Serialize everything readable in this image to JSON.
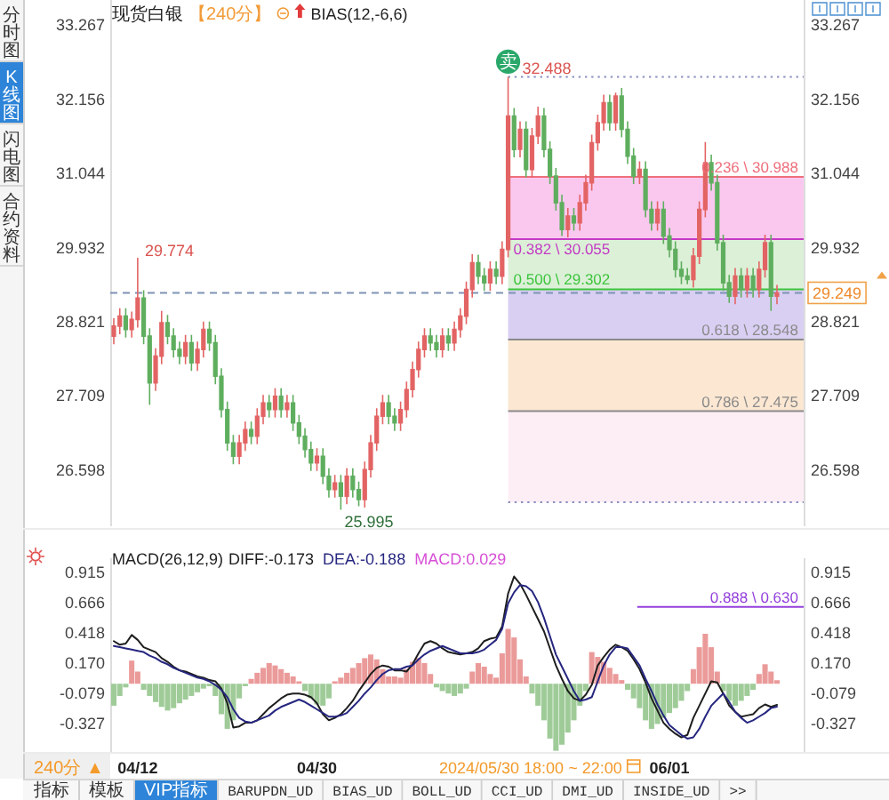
{
  "chart_data": [
    {
      "type": "candlestick",
      "title": "现货白银",
      "subtitle": "【240分】",
      "categories": [
        null,
        null,
        null,
        null,
        null,
        null,
        null,
        null,
        null,
        null,
        null,
        null,
        null,
        null,
        null,
        null,
        null,
        null,
        null,
        null,
        null,
        null,
        null,
        null,
        null,
        null,
        null,
        null,
        null,
        null,
        null,
        null,
        null,
        null,
        null,
        null,
        null,
        null,
        null,
        null,
        null,
        null,
        null,
        null,
        null,
        null,
        null,
        null,
        null,
        null,
        null,
        null,
        null,
        null,
        null,
        null,
        null,
        null,
        null,
        null,
        null,
        null,
        null,
        null,
        null,
        null,
        null,
        null,
        null,
        null,
        null,
        null,
        null,
        null,
        null,
        null,
        null,
        null,
        null,
        null,
        null,
        null,
        null,
        null,
        null,
        null,
        null,
        null,
        null,
        null,
        null,
        null,
        null,
        null,
        null,
        null,
        null,
        null,
        null,
        null,
        null,
        null,
        null,
        null,
        null,
        null,
        null,
        null,
        null,
        null,
        null,
        null
      ],
      "ohlc": [
        [
          28.6,
          28.87,
          28.48,
          28.75
        ],
        [
          28.75,
          29.02,
          28.63,
          28.9
        ],
        [
          28.9,
          29.02,
          28.58,
          28.7
        ],
        [
          28.7,
          28.97,
          28.58,
          28.85
        ],
        [
          28.85,
          29.774,
          28.73,
          29.17
        ],
        [
          29.17,
          29.29,
          28.48,
          28.6
        ],
        [
          28.6,
          28.72,
          27.57,
          27.9
        ],
        [
          27.9,
          28.42,
          27.78,
          28.3
        ],
        [
          28.3,
          28.98,
          28.18,
          28.8
        ],
        [
          28.8,
          28.92,
          28.48,
          28.6
        ],
        [
          28.6,
          28.72,
          28.28,
          28.4
        ],
        [
          28.4,
          28.52,
          28.18,
          28.3
        ],
        [
          28.3,
          28.62,
          28.18,
          28.5
        ],
        [
          28.5,
          28.62,
          28.08,
          28.2
        ],
        [
          28.2,
          28.52,
          28.08,
          28.4
        ],
        [
          28.4,
          28.82,
          28.28,
          28.7
        ],
        [
          28.7,
          28.82,
          28.38,
          28.5
        ],
        [
          28.5,
          28.62,
          27.88,
          28.0
        ],
        [
          28.0,
          28.12,
          27.38,
          27.5
        ],
        [
          27.5,
          27.62,
          26.88,
          27.0
        ],
        [
          27.0,
          27.12,
          26.68,
          26.8
        ],
        [
          26.8,
          27.12,
          26.68,
          27.0
        ],
        [
          27.0,
          27.32,
          26.88,
          27.2
        ],
        [
          27.2,
          27.32,
          26.98,
          27.1
        ],
        [
          27.1,
          27.52,
          26.98,
          27.4
        ],
        [
          27.4,
          27.72,
          27.28,
          27.6
        ],
        [
          27.6,
          27.72,
          27.38,
          27.5
        ],
        [
          27.5,
          27.82,
          27.38,
          27.7
        ],
        [
          27.7,
          27.82,
          27.38,
          27.5
        ],
        [
          27.5,
          27.72,
          27.38,
          27.6
        ],
        [
          27.6,
          27.72,
          27.18,
          27.3
        ],
        [
          27.3,
          27.42,
          26.98,
          27.1
        ],
        [
          27.1,
          27.22,
          26.78,
          26.9
        ],
        [
          26.9,
          27.02,
          26.58,
          26.7
        ],
        [
          26.7,
          26.92,
          26.58,
          26.8
        ],
        [
          26.8,
          26.92,
          26.38,
          26.5
        ],
        [
          26.5,
          26.62,
          26.18,
          26.3
        ],
        [
          26.3,
          26.52,
          26.18,
          26.4
        ],
        [
          26.4,
          26.52,
          25.995,
          26.2
        ],
        [
          26.2,
          26.62,
          26.08,
          26.5
        ],
        [
          26.5,
          26.62,
          26.18,
          26.3
        ],
        [
          26.3,
          26.42,
          26.05,
          26.15
        ],
        [
          26.15,
          26.72,
          26.03,
          26.6
        ],
        [
          26.6,
          27.12,
          26.48,
          27.0
        ],
        [
          27.0,
          27.52,
          26.88,
          27.4
        ],
        [
          27.4,
          27.72,
          27.28,
          27.6
        ],
        [
          27.6,
          27.72,
          27.28,
          27.4
        ],
        [
          27.4,
          27.52,
          27.18,
          27.3
        ],
        [
          27.3,
          27.62,
          27.18,
          27.5
        ],
        [
          27.5,
          27.92,
          27.38,
          27.8
        ],
        [
          27.8,
          28.22,
          27.68,
          28.1
        ],
        [
          28.1,
          28.52,
          27.98,
          28.4
        ],
        [
          28.4,
          28.72,
          28.28,
          28.6
        ],
        [
          28.6,
          28.72,
          28.38,
          28.5
        ],
        [
          28.5,
          28.62,
          28.28,
          28.4
        ],
        [
          28.4,
          28.72,
          28.28,
          28.6
        ],
        [
          28.6,
          28.72,
          28.38,
          28.5
        ],
        [
          28.5,
          28.82,
          28.38,
          28.7
        ],
        [
          28.7,
          29.02,
          28.58,
          28.9
        ],
        [
          28.9,
          29.42,
          28.78,
          29.3
        ],
        [
          29.3,
          29.83,
          29.18,
          29.7
        ],
        [
          29.7,
          29.82,
          29.38,
          29.5
        ],
        [
          29.5,
          29.62,
          29.28,
          29.4
        ],
        [
          29.4,
          29.72,
          29.28,
          29.6
        ],
        [
          29.6,
          29.72,
          29.38,
          29.5
        ],
        [
          29.5,
          30.02,
          29.38,
          29.9
        ],
        [
          29.9,
          32.488,
          29.78,
          31.9
        ],
        [
          31.9,
          32.02,
          31.28,
          31.4
        ],
        [
          31.4,
          31.82,
          31.28,
          31.7
        ],
        [
          31.7,
          31.82,
          30.98,
          31.1
        ],
        [
          31.1,
          31.72,
          30.98,
          31.6
        ],
        [
          31.6,
          32.04,
          31.48,
          31.9
        ],
        [
          31.9,
          32.02,
          31.28,
          31.4
        ],
        [
          31.4,
          31.52,
          30.88,
          31.0
        ],
        [
          31.0,
          31.12,
          30.48,
          30.6
        ],
        [
          30.6,
          30.72,
          30.1,
          30.2
        ],
        [
          30.2,
          30.52,
          30.08,
          30.4
        ],
        [
          30.4,
          30.52,
          30.18,
          30.3
        ],
        [
          30.3,
          30.72,
          30.18,
          30.6
        ],
        [
          30.6,
          31.02,
          30.48,
          30.9
        ],
        [
          30.9,
          31.62,
          30.78,
          31.5
        ],
        [
          31.5,
          31.92,
          31.38,
          31.8
        ],
        [
          31.8,
          32.22,
          31.68,
          32.1
        ],
        [
          32.1,
          32.22,
          31.68,
          31.8
        ],
        [
          31.8,
          32.25,
          31.68,
          32.2
        ],
        [
          32.2,
          32.32,
          31.58,
          31.7
        ],
        [
          31.7,
          31.82,
          31.18,
          31.3
        ],
        [
          31.3,
          31.42,
          30.88,
          31.0
        ],
        [
          31.0,
          31.22,
          30.88,
          31.1
        ],
        [
          31.1,
          31.22,
          30.38,
          30.5
        ],
        [
          30.5,
          30.62,
          30.18,
          30.3
        ],
        [
          30.3,
          30.62,
          30.18,
          30.5
        ],
        [
          30.5,
          30.62,
          29.98,
          30.1
        ],
        [
          30.1,
          30.22,
          29.78,
          29.9
        ],
        [
          29.9,
          30.02,
          29.48,
          29.6
        ],
        [
          29.6,
          29.72,
          29.38,
          29.5
        ],
        [
          29.5,
          29.62,
          29.38,
          29.45
        ],
        [
          29.45,
          29.92,
          29.33,
          29.8
        ],
        [
          29.8,
          30.62,
          29.68,
          30.5
        ],
        [
          30.5,
          31.51,
          30.38,
          31.2
        ],
        [
          31.2,
          31.32,
          30.78,
          30.9
        ],
        [
          30.9,
          31.02,
          29.88,
          30.0
        ],
        [
          30.0,
          30.12,
          29.28,
          29.4
        ],
        [
          29.4,
          29.52,
          29.1,
          29.2
        ],
        [
          29.2,
          29.62,
          29.08,
          29.5
        ],
        [
          29.5,
          29.62,
          29.18,
          29.3
        ],
        [
          29.3,
          29.62,
          29.18,
          29.5
        ],
        [
          29.5,
          29.62,
          29.18,
          29.3
        ],
        [
          29.3,
          29.72,
          29.18,
          29.6
        ],
        [
          29.6,
          30.12,
          29.48,
          30.0
        ],
        [
          30.0,
          30.12,
          28.98,
          29.2
        ],
        [
          29.2,
          29.37,
          29.08,
          29.249
        ]
      ],
      "colors": [
        "#e36464",
        "#e36464",
        "#5fae5f",
        "#e36464",
        "#e36464",
        "#5fae5f",
        "#5fae5f",
        "#e36464",
        "#e36464",
        "#5fae5f",
        "#5fae5f",
        "#5fae5f",
        "#e36464",
        "#5fae5f",
        "#e36464",
        "#e36464",
        "#5fae5f",
        "#5fae5f",
        "#5fae5f",
        "#5fae5f",
        "#5fae5f",
        "#e36464",
        "#e36464",
        "#5fae5f",
        "#e36464",
        "#e36464",
        "#5fae5f",
        "#e36464",
        "#5fae5f",
        "#e36464",
        "#5fae5f",
        "#5fae5f",
        "#5fae5f",
        "#5fae5f",
        "#e36464",
        "#5fae5f",
        "#5fae5f",
        "#e36464",
        "#5fae5f",
        "#e36464",
        "#5fae5f",
        "#5fae5f",
        "#e36464",
        "#e36464",
        "#e36464",
        "#e36464",
        "#5fae5f",
        "#5fae5f",
        "#e36464",
        "#e36464",
        "#e36464",
        "#e36464",
        "#e36464",
        "#5fae5f",
        "#5fae5f",
        "#e36464",
        "#5fae5f",
        "#e36464",
        "#e36464",
        "#e36464",
        "#e36464",
        "#5fae5f",
        "#5fae5f",
        "#e36464",
        "#5fae5f",
        "#e36464",
        "#e36464",
        "#5fae5f",
        "#e36464",
        "#5fae5f",
        "#e36464",
        "#e36464",
        "#5fae5f",
        "#5fae5f",
        "#5fae5f",
        "#5fae5f",
        "#e36464",
        "#5fae5f",
        "#e36464",
        "#e36464",
        "#e36464",
        "#e36464",
        "#e36464",
        "#5fae5f",
        "#e36464",
        "#5fae5f",
        "#5fae5f",
        "#5fae5f",
        "#e36464",
        "#5fae5f",
        "#5fae5f",
        "#e36464",
        "#5fae5f",
        "#5fae5f",
        "#5fae5f",
        "#5fae5f",
        "#5fae5f",
        "#e36464",
        "#e36464",
        "#e36464",
        "#5fae5f",
        "#5fae5f",
        "#5fae5f",
        "#5fae5f",
        "#e36464",
        "#5fae5f",
        "#e36464",
        "#5fae5f",
        "#e36464",
        "#e36464",
        "#5fae5f",
        "#e36464"
      ],
      "ylim": [
        25.75,
        33.64
      ],
      "yticks": [
        26.598,
        27.709,
        28.821,
        29.932,
        31.044,
        32.156,
        33.267
      ],
      "y2lim": [
        25.75,
        33.64
      ],
      "y2ticks": [
        26.598,
        27.709,
        28.821,
        29.932,
        31.044,
        32.156,
        33.267
      ],
      "ref_lines": [
        {
          "axis": "y",
          "value": 29.249,
          "label": "29.249",
          "color": "#7f93b5",
          "line_style": "dashed"
        },
        {
          "axis": "y",
          "value": 32.488,
          "label": "32.488",
          "color": "#8a8fc0",
          "line_style": "dotted"
        },
        {
          "axis": "y",
          "value": 30.988,
          "label": "0.236 \\ 30.988",
          "color": "#ee6f7c"
        },
        {
          "axis": "y",
          "value": 30.055,
          "label": "0.382 \\ 30.055",
          "color": "#c43bc4"
        },
        {
          "axis": "y",
          "value": 29.302,
          "label": "0.500 \\ 29.302",
          "color": "#3cc43c"
        },
        {
          "axis": "y",
          "value": 28.548,
          "label": "0.618 \\ 28.548",
          "color": "#8a8a8a"
        },
        {
          "axis": "y",
          "value": 27.475,
          "label": "0.786 \\ 27.475",
          "color": "#8a8a8a"
        },
        {
          "axis": "y",
          "value": 26.11,
          "color": "#8a8fc0",
          "line_style": "dotted"
        }
      ],
      "bands": [
        {
          "axis": "y",
          "from": 30.055,
          "to": 30.988,
          "color": "#fac8ef"
        },
        {
          "axis": "y",
          "from": 29.302,
          "to": 30.055,
          "color": "#dcf0d8"
        },
        {
          "axis": "y",
          "from": 28.548,
          "to": 29.302,
          "color": "#d9cff3"
        },
        {
          "axis": "y",
          "from": 27.475,
          "to": 28.548,
          "color": "#fbe7d2"
        },
        {
          "axis": "y",
          "from": 26.11,
          "to": 27.475,
          "color": "#fdeef5"
        }
      ],
      "annotations": [
        "BIAS(12,-6,6)",
        "分时图",
        "K线图",
        "闪电图",
        "合约资料",
        "卖",
        "29.774",
        "25.995"
      ]
    },
    {
      "type": "bar",
      "title": "MACD(26,12,9)",
      "categories": [
        null,
        null,
        null,
        null,
        "04/12",
        null,
        null,
        null,
        null,
        null,
        null,
        null,
        null,
        null,
        null,
        null,
        null,
        null,
        null,
        null,
        null,
        null,
        null,
        null,
        null,
        null,
        null,
        null,
        null,
        null,
        null,
        null,
        null,
        null,
        "04/30",
        null,
        null,
        null,
        null,
        null,
        null,
        null,
        null,
        null,
        null,
        null,
        null,
        null,
        null,
        null,
        null,
        null,
        null,
        null,
        null,
        null,
        null,
        null,
        null,
        null,
        null,
        null,
        null,
        null,
        null,
        null,
        null,
        null,
        null,
        null,
        null,
        null,
        null,
        null,
        null,
        null,
        null,
        null,
        null,
        null,
        null,
        null,
        null,
        null,
        null,
        null,
        null,
        null,
        null,
        null,
        null,
        null,
        null,
        "06/01",
        null,
        null,
        null,
        null,
        null,
        null,
        null,
        null,
        null,
        null,
        null,
        null,
        null,
        null,
        null,
        null,
        null,
        null
      ],
      "series": [
        {
          "type": "line",
          "color": "#1e1e1e",
          "values": [
            0.35,
            0.32,
            0.33,
            0.4,
            0.36,
            0.3,
            0.28,
            0.26,
            0.21,
            0.18,
            0.14,
            0.11,
            0.1,
            0.08,
            0.06,
            0.05,
            0.03,
            0.02,
            -0.04,
            -0.16,
            -0.36,
            -0.35,
            -0.32,
            -0.32,
            -0.3,
            -0.25,
            -0.2,
            -0.16,
            -0.12,
            -0.09,
            -0.08,
            -0.08,
            -0.09,
            -0.11,
            -0.16,
            -0.25,
            -0.3,
            -0.28,
            -0.25,
            -0.2,
            -0.14,
            -0.06,
            0.01,
            0.08,
            0.13,
            0.15,
            0.14,
            0.11,
            0.11,
            0.1,
            0.16,
            0.25,
            0.33,
            0.35,
            0.33,
            0.29,
            0.26,
            0.25,
            0.24,
            0.25,
            0.26,
            0.29,
            0.35,
            0.37,
            0.38,
            0.47,
            0.74,
            0.88,
            0.82,
            0.73,
            0.63,
            0.53,
            0.43,
            0.29,
            0.15,
            0.04,
            -0.06,
            -0.12,
            -0.14,
            -0.09,
            -0.01,
            0.15,
            0.22,
            0.28,
            0.32,
            0.3,
            0.27,
            0.2,
            0.12,
            0.01,
            -0.12,
            -0.22,
            -0.32,
            -0.37,
            -0.41,
            -0.44,
            -0.42,
            -0.28,
            -0.18,
            -0.08,
            0.02,
            0.01,
            -0.08,
            -0.18,
            -0.23,
            -0.27,
            -0.26,
            -0.25,
            -0.2,
            -0.17,
            -0.19,
            -0.173
          ]
        },
        {
          "type": "line",
          "color": "#262680",
          "values": [
            0.31,
            0.3,
            0.29,
            0.28,
            0.27,
            0.26,
            0.23,
            0.21,
            0.18,
            0.16,
            0.13,
            0.11,
            0.09,
            0.07,
            0.05,
            0.04,
            0.02,
            -0.01,
            -0.05,
            -0.11,
            -0.21,
            -0.28,
            -0.31,
            -0.32,
            -0.3,
            -0.28,
            -0.26,
            -0.22,
            -0.19,
            -0.17,
            -0.15,
            -0.13,
            -0.15,
            -0.18,
            -0.21,
            -0.24,
            -0.27,
            -0.27,
            -0.26,
            -0.24,
            -0.19,
            -0.14,
            -0.08,
            -0.03,
            0.03,
            0.08,
            0.11,
            0.12,
            0.12,
            0.14,
            0.15,
            0.2,
            0.24,
            0.27,
            0.29,
            0.31,
            0.29,
            0.27,
            0.25,
            0.25,
            0.25,
            0.26,
            0.28,
            0.32,
            0.36,
            0.45,
            0.66,
            0.75,
            0.81,
            0.8,
            0.76,
            0.67,
            0.54,
            0.39,
            0.24,
            0.14,
            0.04,
            -0.06,
            -0.14,
            -0.13,
            -0.11,
            0.02,
            0.15,
            0.24,
            0.3,
            0.3,
            0.29,
            0.22,
            0.15,
            0.04,
            -0.06,
            -0.17,
            -0.26,
            -0.34,
            -0.38,
            -0.42,
            -0.45,
            -0.44,
            -0.37,
            -0.27,
            -0.18,
            -0.13,
            -0.08,
            -0.15,
            -0.23,
            -0.28,
            -0.32,
            -0.3,
            -0.27,
            -0.24,
            -0.2,
            -0.188
          ]
        },
        {
          "type": "bar",
          "values": [
            -0.18,
            -0.1,
            -0.03,
            0.19,
            0.1,
            -0.05,
            -0.1,
            -0.15,
            -0.19,
            -0.22,
            -0.2,
            -0.16,
            -0.13,
            -0.1,
            -0.07,
            -0.04,
            -0.02,
            -0.1,
            -0.25,
            -0.37,
            -0.3,
            -0.12,
            -0.02,
            0.04,
            0.09,
            0.13,
            0.17,
            0.15,
            0.12,
            0.09,
            0.06,
            0.02,
            -0.06,
            -0.12,
            -0.17,
            -0.18,
            -0.12,
            0.02,
            0.05,
            0.09,
            0.13,
            0.17,
            0.21,
            0.24,
            0.2,
            0.12,
            0.06,
            0.06,
            0.05,
            0.12,
            0.18,
            0.21,
            0.17,
            0.08,
            -0.03,
            -0.06,
            -0.08,
            -0.1,
            -0.08,
            -0.04,
            0.1,
            0.17,
            0.14,
            0.08,
            0.05,
            0.25,
            0.45,
            0.38,
            0.2,
            0.06,
            -0.08,
            -0.18,
            -0.3,
            -0.45,
            -0.55,
            -0.5,
            -0.4,
            -0.3,
            -0.18,
            -0.06,
            0.26,
            0.22,
            0.18,
            0.13,
            0.08,
            0.03,
            -0.05,
            -0.12,
            -0.2,
            -0.3,
            -0.37,
            -0.33,
            -0.28,
            -0.24,
            -0.2,
            -0.14,
            -0.06,
            0.12,
            0.3,
            0.41,
            0.3,
            0.1,
            -0.06,
            -0.14,
            -0.18,
            -0.14,
            -0.1,
            -0.05,
            0.08,
            0.16,
            0.1,
            0.029
          ],
          "colors": [
            "#9fcb98",
            "#9fcb98",
            "#9fcb98",
            "#eb9a9a",
            "#eb9a9a",
            "#9fcb98",
            "#9fcb98",
            "#9fcb98",
            "#9fcb98",
            "#9fcb98",
            "#9fcb98",
            "#9fcb98",
            "#9fcb98",
            "#9fcb98",
            "#9fcb98",
            "#9fcb98",
            "#9fcb98",
            "#9fcb98",
            "#9fcb98",
            "#9fcb98",
            "#9fcb98",
            "#9fcb98",
            "#9fcb98",
            "#eb9a9a",
            "#eb9a9a",
            "#eb9a9a",
            "#eb9a9a",
            "#eb9a9a",
            "#eb9a9a",
            "#eb9a9a",
            "#eb9a9a",
            "#eb9a9a",
            "#9fcb98",
            "#9fcb98",
            "#9fcb98",
            "#9fcb98",
            "#9fcb98",
            "#eb9a9a",
            "#eb9a9a",
            "#eb9a9a",
            "#eb9a9a",
            "#eb9a9a",
            "#eb9a9a",
            "#eb9a9a",
            "#eb9a9a",
            "#eb9a9a",
            "#eb9a9a",
            "#eb9a9a",
            "#eb9a9a",
            "#eb9a9a",
            "#eb9a9a",
            "#eb9a9a",
            "#eb9a9a",
            "#eb9a9a",
            "#9fcb98",
            "#9fcb98",
            "#9fcb98",
            "#9fcb98",
            "#9fcb98",
            "#9fcb98",
            "#eb9a9a",
            "#eb9a9a",
            "#eb9a9a",
            "#eb9a9a",
            "#eb9a9a",
            "#eb9a9a",
            "#eb9a9a",
            "#eb9a9a",
            "#eb9a9a",
            "#eb9a9a",
            "#9fcb98",
            "#9fcb98",
            "#9fcb98",
            "#9fcb98",
            "#9fcb98",
            "#9fcb98",
            "#9fcb98",
            "#9fcb98",
            "#9fcb98",
            "#9fcb98",
            "#eb9a9a",
            "#eb9a9a",
            "#eb9a9a",
            "#eb9a9a",
            "#eb9a9a",
            "#eb9a9a",
            "#9fcb98",
            "#9fcb98",
            "#9fcb98",
            "#9fcb98",
            "#9fcb98",
            "#9fcb98",
            "#9fcb98",
            "#9fcb98",
            "#9fcb98",
            "#9fcb98",
            "#9fcb98",
            "#eb9a9a",
            "#eb9a9a",
            "#eb9a9a",
            "#eb9a9a",
            "#eb9a9a",
            "#9fcb98",
            "#9fcb98",
            "#9fcb98",
            "#9fcb98",
            "#9fcb98",
            "#9fcb98",
            "#eb9a9a",
            "#eb9a9a",
            "#eb9a9a",
            "#eb9a9a"
          ]
        }
      ],
      "ylim": [
        -0.56,
        1.03
      ],
      "yticks": [
        -0.327,
        -0.079,
        {
          "value": 0.17,
          "label": "0.170"
        },
        0.418,
        0.666,
        0.915
      ],
      "y2lim": [
        -0.56,
        1.03
      ],
      "y2ticks": [
        -0.327,
        -0.079,
        {
          "value": 0.17,
          "label": "0.170"
        },
        0.418,
        0.666,
        0.915
      ],
      "ref_lines": [
        {
          "axis": "y",
          "value": 0.63,
          "label": "0.888 \\ 0.630",
          "color": "#9440dc"
        }
      ],
      "annotations": [
        "DIFF:-0.173",
        "DEA:-0.188",
        "MACD:0.029",
        "2024/05/30 18:00 ~ 22:00",
        "240分 ▲",
        "指标",
        "模板",
        "VIP指标",
        "BARUPDN_UD",
        "BIAS_UD",
        "BOLL_UD",
        "CCI_UD",
        "DMI_UD",
        "INSIDE_UD",
        ">>"
      ]
    }
  ]
}
